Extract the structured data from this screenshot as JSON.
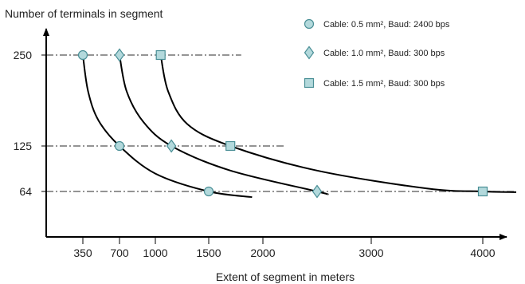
{
  "chart_data": {
    "type": "line",
    "ylabel": "Number of terminals in segment",
    "xlabel": "Extent of segment in meters",
    "x_ticks": [
      350,
      700,
      1000,
      1500,
      2000,
      3000,
      4000
    ],
    "x_tick_labels": [
      "350",
      "700",
      "1000",
      "1500",
      "2000",
      "3000",
      "4000"
    ],
    "y_ticks": [
      64,
      125,
      250
    ],
    "y_tick_labels": [
      "64",
      "125",
      "250"
    ],
    "reference_lines": [
      {
        "y": 250,
        "x_start": 0,
        "x_end": 1800
      },
      {
        "y": 125,
        "x_start": 0,
        "x_end": 2200
      },
      {
        "y": 64,
        "x_start": 0,
        "x_end": 4300
      }
    ],
    "series": [
      {
        "name": "Cable: 0.5 mm², Baud: 2400 bps",
        "marker": "circle",
        "x": [
          350,
          700,
          1500
        ],
        "y": [
          250,
          125,
          64
        ],
        "curve_x": [
          350,
          400,
          500,
          700,
          1000,
          1500,
          1900
        ],
        "curve_y": [
          250,
          200,
          160,
          125,
          88,
          64,
          56
        ]
      },
      {
        "name": "Cable: 1.0 mm², Baud: 300 bps",
        "marker": "diamond",
        "x": [
          700,
          1150,
          2500
        ],
        "y": [
          250,
          125,
          64
        ],
        "curve_x": [
          700,
          760,
          900,
          1150,
          1700,
          2500,
          2600
        ],
        "curve_y": [
          250,
          200,
          158,
          125,
          92,
          64,
          60
        ]
      },
      {
        "name": "Cable: 1.5 mm², Baud: 300 bps",
        "marker": "square",
        "x": [
          1050,
          1700,
          4000
        ],
        "y": [
          250,
          125,
          64
        ],
        "curve_x": [
          1050,
          1120,
          1300,
          1700,
          2500,
          3500,
          4000,
          4300
        ],
        "curve_y": [
          250,
          200,
          155,
          125,
          92,
          68,
          64,
          63
        ]
      }
    ],
    "colors": {
      "marker_fill": "#b3d9dc",
      "marker_stroke": "#4a8f96",
      "line": "#000000",
      "reference_line": "#555555",
      "axis": "#000000"
    },
    "legend_position": "top-right"
  }
}
